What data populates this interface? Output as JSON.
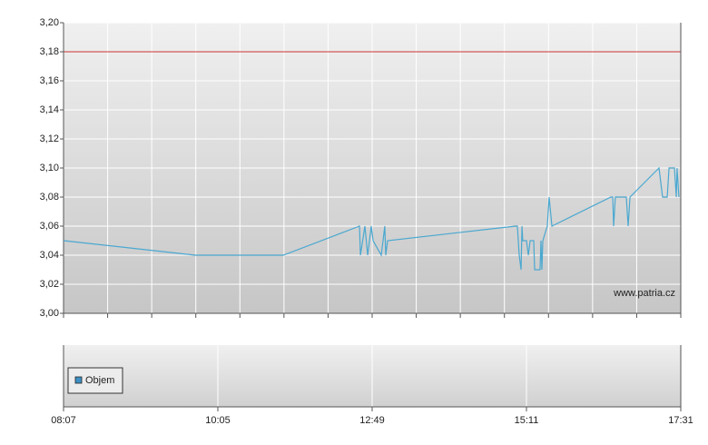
{
  "chart_data": [
    {
      "type": "line",
      "x": [
        0,
        0.853,
        1.424,
        1.918,
        1.924,
        1.953,
        1.971,
        1.994,
        2.006,
        2.059,
        2.082,
        2.088,
        2.1,
        2.929,
        2.941,
        2.953,
        2.965,
        2.971,
        2.976,
        3,
        3.012,
        3.024,
        3.047,
        3.053,
        3.088,
        3.094,
        3.1,
        3.106,
        3.135,
        3.147,
        3.165,
        3.547,
        3.559,
        3.565,
        3.576,
        3.647,
        3.659,
        3.671,
        3.859,
        3.882,
        3.912,
        3.924,
        3.959,
        3.971,
        3.976,
        3.988
      ],
      "values": [
        3.05,
        3.04,
        3.04,
        3.06,
        3.04,
        3.06,
        3.04,
        3.06,
        3.05,
        3.04,
        3.06,
        3.04,
        3.05,
        3.06,
        3.06,
        3.04,
        3.03,
        3.06,
        3.05,
        3.05,
        3.04,
        3.05,
        3.05,
        3.03,
        3.03,
        3.05,
        3.03,
        3.05,
        3.06,
        3.08,
        3.06,
        3.08,
        3.08,
        3.06,
        3.08,
        3.08,
        3.06,
        3.08,
        3.1,
        3.08,
        3.08,
        3.1,
        3.1,
        3.08,
        3.1,
        3.08
      ],
      "color": "#4aa8d0",
      "xlim": [
        0,
        4
      ],
      "ylim": [
        3.0,
        3.2
      ],
      "yticks": [
        {
          "value": 3.0,
          "label": "3,00"
        },
        {
          "value": 3.02,
          "label": "3,02"
        },
        {
          "value": 3.04,
          "label": "3,04"
        },
        {
          "value": 3.06,
          "label": "3,06"
        },
        {
          "value": 3.08,
          "label": "3,08"
        },
        {
          "value": 3.1,
          "label": "3,10"
        },
        {
          "value": 3.12,
          "label": "3,12"
        },
        {
          "value": 3.14,
          "label": "3,14"
        },
        {
          "value": 3.16,
          "label": "3,16"
        },
        {
          "value": 3.18,
          "label": "3,18"
        },
        {
          "value": 3.2,
          "label": "3,20"
        }
      ],
      "reference_line": {
        "value": 3.18,
        "color": "#cc3333"
      },
      "watermark": "www.patria.cz",
      "grid": true
    },
    {
      "type": "bar",
      "series": [
        {
          "name": "Objem",
          "color": "#3c8fc4",
          "values": []
        }
      ],
      "xlim": [
        0,
        4
      ],
      "xticks": [
        {
          "value": 0,
          "label": "08:07"
        },
        {
          "value": 1,
          "label": "10:05"
        },
        {
          "value": 2,
          "label": "12:49"
        },
        {
          "value": 3,
          "label": "15:11"
        },
        {
          "value": 4,
          "label": "17:31"
        }
      ],
      "grid": true
    }
  ]
}
